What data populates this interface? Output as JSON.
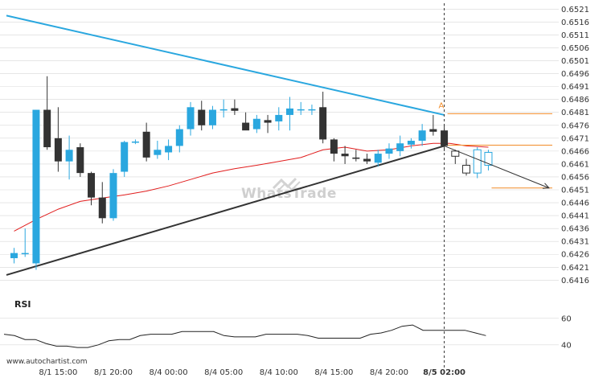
{
  "chart_data": {
    "type": "candlestick",
    "instrument_panel": {
      "y_ticks": [
        "0.6521",
        "0.6516",
        "0.6511",
        "0.6506",
        "0.6501",
        "0.6496",
        "0.6491",
        "0.6486",
        "0.6481",
        "0.6476",
        "0.6471",
        "0.6466",
        "0.6461",
        "0.6456",
        "0.6451",
        "0.6446",
        "0.6441",
        "0.6436",
        "0.6431",
        "0.6426",
        "0.6421",
        "0.6416"
      ],
      "ylim": [
        0.64133,
        0.65236
      ],
      "x_ticks": [
        "8/1 15:00",
        "8/1 20:00",
        "8/4 00:00",
        "8/4 05:00",
        "8/4 10:00",
        "8/4 15:00",
        "8/4 20:00",
        "8/5 02:00"
      ],
      "x_tick_bars": [
        4,
        9,
        14,
        19,
        24,
        29,
        34,
        39
      ],
      "candles": [
        {
          "o": 0.64245,
          "h": 0.64285,
          "l": 0.64225,
          "c": 0.64265
        },
        {
          "o": 0.64265,
          "h": 0.6436,
          "l": 0.6425,
          "c": 0.64265
        },
        {
          "o": 0.64225,
          "h": 0.6482,
          "l": 0.642,
          "c": 0.6482
        },
        {
          "o": 0.6482,
          "h": 0.6495,
          "l": 0.64665,
          "c": 0.64675
        },
        {
          "o": 0.6471,
          "h": 0.6483,
          "l": 0.6458,
          "c": 0.6462
        },
        {
          "o": 0.6462,
          "h": 0.6472,
          "l": 0.6455,
          "c": 0.64665
        },
        {
          "o": 0.64675,
          "h": 0.6469,
          "l": 0.6456,
          "c": 0.64575
        },
        {
          "o": 0.64575,
          "h": 0.6458,
          "l": 0.6445,
          "c": 0.6448
        },
        {
          "o": 0.6448,
          "h": 0.6454,
          "l": 0.6438,
          "c": 0.644
        },
        {
          "o": 0.644,
          "h": 0.6459,
          "l": 0.6439,
          "c": 0.64575
        },
        {
          "o": 0.6458,
          "h": 0.647,
          "l": 0.6456,
          "c": 0.64695
        },
        {
          "o": 0.64693,
          "h": 0.64705,
          "l": 0.64687,
          "c": 0.64697
        },
        {
          "o": 0.64735,
          "h": 0.6477,
          "l": 0.6462,
          "c": 0.64635
        },
        {
          "o": 0.64645,
          "h": 0.647,
          "l": 0.6463,
          "c": 0.64665
        },
        {
          "o": 0.64655,
          "h": 0.64705,
          "l": 0.64625,
          "c": 0.6468
        },
        {
          "o": 0.6468,
          "h": 0.6476,
          "l": 0.64655,
          "c": 0.64745
        },
        {
          "o": 0.64745,
          "h": 0.6485,
          "l": 0.6472,
          "c": 0.6483
        },
        {
          "o": 0.6482,
          "h": 0.64855,
          "l": 0.6474,
          "c": 0.6476
        },
        {
          "o": 0.6476,
          "h": 0.64835,
          "l": 0.64745,
          "c": 0.6482
        },
        {
          "o": 0.64818,
          "h": 0.6486,
          "l": 0.6479,
          "c": 0.64822
        },
        {
          "o": 0.64826,
          "h": 0.6486,
          "l": 0.648,
          "c": 0.64816
        },
        {
          "o": 0.6477,
          "h": 0.6481,
          "l": 0.64745,
          "c": 0.6474
        },
        {
          "o": 0.64745,
          "h": 0.648,
          "l": 0.6473,
          "c": 0.64785
        },
        {
          "o": 0.6478,
          "h": 0.648,
          "l": 0.6473,
          "c": 0.6477
        },
        {
          "o": 0.64775,
          "h": 0.6483,
          "l": 0.6474,
          "c": 0.648
        },
        {
          "o": 0.648,
          "h": 0.6487,
          "l": 0.6474,
          "c": 0.64825
        },
        {
          "o": 0.64818,
          "h": 0.6485,
          "l": 0.648,
          "c": 0.64822
        },
        {
          "o": 0.64818,
          "h": 0.6484,
          "l": 0.648,
          "c": 0.64822
        },
        {
          "o": 0.6483,
          "h": 0.6489,
          "l": 0.6469,
          "c": 0.64705
        },
        {
          "o": 0.64705,
          "h": 0.6471,
          "l": 0.6462,
          "c": 0.6465
        },
        {
          "o": 0.6465,
          "h": 0.6468,
          "l": 0.6461,
          "c": 0.6464
        },
        {
          "o": 0.64635,
          "h": 0.64665,
          "l": 0.6462,
          "c": 0.6463
        },
        {
          "o": 0.6463,
          "h": 0.6465,
          "l": 0.6461,
          "c": 0.6462
        },
        {
          "o": 0.64615,
          "h": 0.64665,
          "l": 0.646,
          "c": 0.6465
        },
        {
          "o": 0.6465,
          "h": 0.6469,
          "l": 0.6463,
          "c": 0.6467
        },
        {
          "o": 0.6466,
          "h": 0.6472,
          "l": 0.6464,
          "c": 0.6469
        },
        {
          "o": 0.64685,
          "h": 0.6471,
          "l": 0.6467,
          "c": 0.647
        },
        {
          "o": 0.647,
          "h": 0.64765,
          "l": 0.6468,
          "c": 0.6474
        },
        {
          "o": 0.64745,
          "h": 0.648,
          "l": 0.6472,
          "c": 0.64735
        },
        {
          "o": 0.6474,
          "h": 0.6476,
          "l": 0.6466,
          "c": 0.6468
        }
      ],
      "projection_candles": [
        {
          "o": 0.6466,
          "h": 0.64665,
          "l": 0.6461,
          "c": 0.6464
        },
        {
          "o": 0.64605,
          "h": 0.6463,
          "l": 0.64565,
          "c": 0.64575
        },
        {
          "o": 0.64575,
          "h": 0.64675,
          "l": 0.64555,
          "c": 0.64665
        },
        {
          "o": 0.64605,
          "h": 0.64665,
          "l": 0.64585,
          "c": 0.64655
        }
      ],
      "moving_average": {
        "color": "#e11d1d",
        "points": [
          [
            0,
            0.6435
          ],
          [
            2,
            0.64395
          ],
          [
            4,
            0.64435
          ],
          [
            6,
            0.64465
          ],
          [
            8,
            0.64478
          ],
          [
            10,
            0.6449
          ],
          [
            12,
            0.64505
          ],
          [
            14,
            0.64525
          ],
          [
            16,
            0.6455
          ],
          [
            18,
            0.64575
          ],
          [
            20,
            0.64592
          ],
          [
            22,
            0.64605
          ],
          [
            24,
            0.6462
          ],
          [
            26,
            0.64635
          ],
          [
            28,
            0.64665
          ],
          [
            30,
            0.64675
          ],
          [
            32,
            0.6466
          ],
          [
            34,
            0.64665
          ],
          [
            36,
            0.6468
          ],
          [
            38,
            0.6469
          ],
          [
            39.5,
            0.6469
          ],
          [
            41,
            0.6468
          ],
          [
            43,
            0.64675
          ]
        ]
      },
      "resistance_line": {
        "color": "#2aa7df",
        "from": [
          0,
          0.65185
        ],
        "to": [
          39,
          0.648
        ]
      },
      "support_line": {
        "color": "#333333",
        "from": [
          0,
          0.6418
        ],
        "to": [
          39,
          0.6468
        ]
      },
      "levels": [
        {
          "color": "#f28c28",
          "y": 0.64805,
          "x_from": 39
        },
        {
          "color": "#f28c28",
          "y": 0.64683,
          "x_from": 39
        },
        {
          "color": "#f28c28",
          "y": 0.64517,
          "x_from": 43
        }
      ],
      "forecast_arrow": {
        "color": "#333333",
        "from": [
          39,
          0.6468
        ],
        "to": [
          48.5,
          0.64517
        ]
      },
      "signal_marker": {
        "label": "A",
        "bar": 38.7,
        "y": 0.6482
      },
      "breakout_bar": 39
    },
    "rsi_panel": {
      "title": "RSI",
      "y_ticks": [
        "60",
        "40"
      ],
      "ylim": [
        33.2,
        69.6
      ],
      "values": [
        48,
        47,
        44,
        44,
        41,
        39,
        39,
        38,
        38,
        40,
        43,
        44,
        44,
        47,
        48,
        48,
        48,
        50,
        50,
        50,
        50,
        47,
        46,
        46,
        46,
        48,
        48,
        48,
        48,
        47,
        45,
        45,
        45,
        45,
        45,
        48,
        49,
        51,
        54,
        55,
        51,
        51,
        51,
        51,
        51,
        49,
        47
      ]
    }
  },
  "watermark": "WhatsTrade",
  "source_text": "www.autochartist.com",
  "colors": {
    "bull": "#2aa7df",
    "bear": "#333333",
    "grid": "#d8d8d8",
    "vertical_marker": "#333333"
  }
}
